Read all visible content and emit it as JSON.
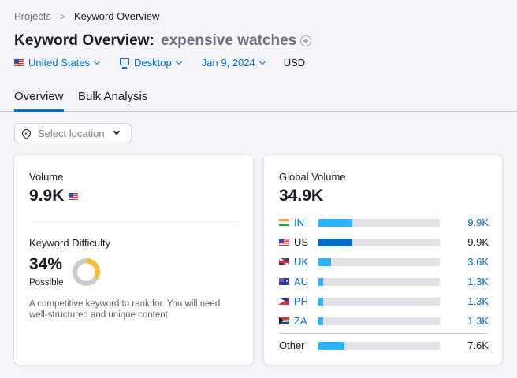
{
  "breadcrumb": {
    "items": [
      "Projects",
      "Keyword Overview"
    ],
    "separator": ">"
  },
  "header": {
    "title": "Keyword Overview:",
    "keyword": "expensive watches",
    "add_icon": "plus-circle-icon"
  },
  "filters": {
    "country": "United States",
    "device": "Desktop",
    "date": "Jan 9, 2024",
    "currency": "USD"
  },
  "tabs": [
    {
      "label": "Overview",
      "active": true
    },
    {
      "label": "Bulk Analysis",
      "active": false
    }
  ],
  "location_select": {
    "placeholder": "Select location",
    "icon": "map-pin-icon"
  },
  "volume_card": {
    "label": "Volume",
    "value": "9.9K",
    "flag": "us-flag-icon",
    "kd_label": "Keyword Difficulty",
    "kd_value": "34%",
    "kd_rating": "Possible",
    "kd_percent": 34,
    "kd_color": "#f9bd34",
    "kd_track_color": "#c9cbd1",
    "kd_description": "A competitive keyword to rank for. You will need well-structured and unique content."
  },
  "global_volume_card": {
    "label": "Global Volume",
    "value": "34.9K",
    "countries": [
      {
        "code": "IN",
        "flag": "india-flag-icon",
        "value": "9.9K",
        "bar_pct": 28,
        "bar_color": "#2bb3ff",
        "highlight": false
      },
      {
        "code": "US",
        "flag": "us-flag-icon",
        "value": "9.9K",
        "bar_pct": 28,
        "bar_color": "#006dca",
        "highlight": true
      },
      {
        "code": "UK",
        "flag": "uk-flag-icon",
        "value": "3.6K",
        "bar_pct": 10.5,
        "bar_color": "#2bb3ff",
        "highlight": false
      },
      {
        "code": "AU",
        "flag": "australia-flag-icon",
        "value": "1.3K",
        "bar_pct": 4,
        "bar_color": "#2bb3ff",
        "highlight": false
      },
      {
        "code": "PH",
        "flag": "philippines-flag-icon",
        "value": "1.3K",
        "bar_pct": 4,
        "bar_color": "#2bb3ff",
        "highlight": false
      },
      {
        "code": "ZA",
        "flag": "south-africa-flag-icon",
        "value": "1.3K",
        "bar_pct": 4,
        "bar_color": "#2bb3ff",
        "highlight": false
      }
    ],
    "other": {
      "label": "Other",
      "value": "7.6K",
      "bar_pct": 21.5,
      "bar_color": "#2bb3ff"
    }
  }
}
